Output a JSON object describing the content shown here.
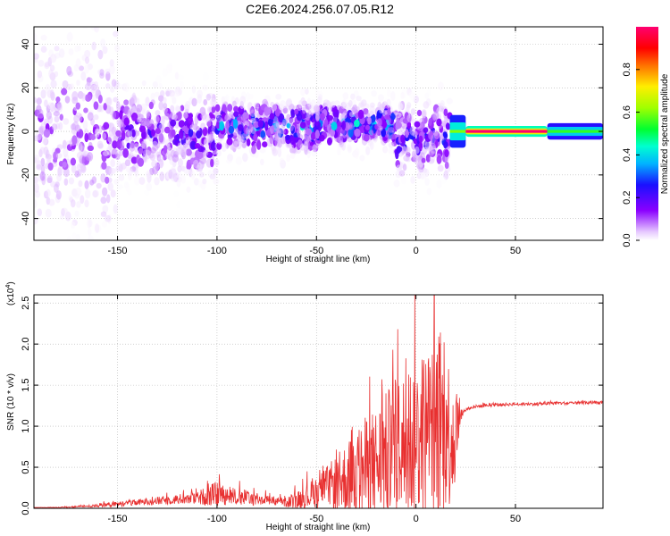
{
  "figure_title": "C2E6.2024.256.07.05.R12",
  "colors": {
    "signal": "#ff0000",
    "snr_line": "#e83030",
    "grid": "#b4b4b4",
    "background": "#ffffff"
  },
  "chart_data": [
    {
      "type": "heatmap",
      "title": "",
      "xlabel": "Height of straight line (km)",
      "ylabel": "Frequency (Hz)",
      "xlim": [
        -192,
        94
      ],
      "ylim": [
        -50,
        48
      ],
      "x_ticks": [
        -150,
        -100,
        -50,
        0,
        50
      ],
      "y_ticks": [
        -40,
        -20,
        0,
        20,
        40
      ],
      "x_tick_labels": [
        "-150",
        "-100",
        "-50",
        "0",
        "50"
      ],
      "y_tick_labels": [
        "-40",
        "-20",
        "0",
        "20",
        "40"
      ],
      "colormap": "rainbow (white-violet-blue-cyan-green-yellow-red-magenta)",
      "colorbar": {
        "label": "Normalized spectral amplitude",
        "range": [
          0,
          1
        ],
        "ticks": [
          0.0,
          0.2,
          0.4,
          0.6,
          0.8
        ],
        "tick_labels": [
          "0.0",
          "0.2",
          "0.4",
          "0.6",
          "0.8"
        ]
      },
      "grid": true,
      "regions": [
        {
          "x_range": [
            -192,
            -150
          ],
          "freq_center": 0,
          "freq_spread": 48,
          "amplitude": 0.12
        },
        {
          "x_range": [
            -150,
            -100
          ],
          "freq_center": -2,
          "freq_spread": 22,
          "amplitude": 0.2
        },
        {
          "x_range": [
            -100,
            -50
          ],
          "freq_center": 2,
          "freq_spread": 12,
          "amplitude": 0.35
        },
        {
          "x_range": [
            -50,
            -10
          ],
          "freq_center": 3,
          "freq_spread": 10,
          "amplitude": 0.38
        },
        {
          "x_range": [
            -10,
            17
          ],
          "freq_center": -3,
          "freq_spread": 18,
          "amplitude": 0.25
        },
        {
          "x_range": [
            17,
            25
          ],
          "freq_center": 0,
          "freq_spread": 3,
          "amplitude": 0.6
        },
        {
          "x_range": [
            25,
            66
          ],
          "freq_center": 0,
          "freq_spread": 1,
          "amplitude": 1.0
        },
        {
          "x_range": [
            66,
            94
          ],
          "freq_center": 0,
          "freq_spread": 1.5,
          "amplitude": 0.55
        }
      ]
    },
    {
      "type": "line",
      "title": "",
      "xlabel": "Height of straight line (km)",
      "ylabel": "SNR (10 * v/v)",
      "y_multiplier_label": "(x10",
      "y_multiplier_exponent": "4",
      "y_multiplier_close": ")",
      "xlim": [
        -192,
        94
      ],
      "ylim": [
        0,
        2.6
      ],
      "x_ticks": [
        -150,
        -100,
        -50,
        0,
        50
      ],
      "y_ticks": [
        0.0,
        0.5,
        1.0,
        1.5,
        2.0,
        2.5
      ],
      "x_tick_labels": [
        "-150",
        "-100",
        "-50",
        "0",
        "50"
      ],
      "y_tick_labels": [
        "0.0",
        "0.5",
        "1.0",
        "1.5",
        "2.0",
        "2.5"
      ],
      "grid": true,
      "series": [
        {
          "color": "#e83030",
          "x": [
            -192,
            -180,
            -170,
            -160,
            -150,
            -140,
            -130,
            -120,
            -110,
            -105,
            -100,
            -95,
            -90,
            -85,
            -80,
            -75,
            -70,
            -65,
            -60,
            -55,
            -50,
            -45,
            -40,
            -35,
            -30,
            -25,
            -20,
            -15,
            -10,
            -5,
            0,
            5,
            10,
            15,
            18,
            20,
            23,
            25,
            30,
            40,
            50,
            60,
            70,
            80,
            94
          ],
          "y": [
            0.01,
            0.01,
            0.02,
            0.03,
            0.05,
            0.07,
            0.09,
            0.11,
            0.13,
            0.15,
            0.17,
            0.16,
            0.14,
            0.13,
            0.11,
            0.1,
            0.08,
            0.07,
            0.1,
            0.14,
            0.2,
            0.25,
            0.3,
            0.36,
            0.42,
            0.48,
            0.55,
            0.62,
            0.7,
            0.78,
            0.85,
            0.95,
            1.0,
            0.95,
            0.9,
            0.95,
            1.15,
            1.2,
            1.24,
            1.26,
            1.27,
            1.27,
            1.28,
            1.28,
            1.29
          ],
          "noise_amplitude": [
            0,
            0.005,
            0.01,
            0.02,
            0.03,
            0.04,
            0.05,
            0.06,
            0.08,
            0.12,
            0.15,
            0.12,
            0.1,
            0.09,
            0.08,
            0.06,
            0.05,
            0.06,
            0.1,
            0.15,
            0.2,
            0.25,
            0.35,
            0.45,
            0.55,
            0.65,
            0.7,
            0.8,
            0.9,
            0.95,
            1.0,
            1.0,
            1.3,
            1.0,
            0.9,
            0.6,
            0.05,
            0.02,
            0.02,
            0.02,
            0.02,
            0.02,
            0.02,
            0.02,
            0.02
          ]
        }
      ]
    }
  ]
}
